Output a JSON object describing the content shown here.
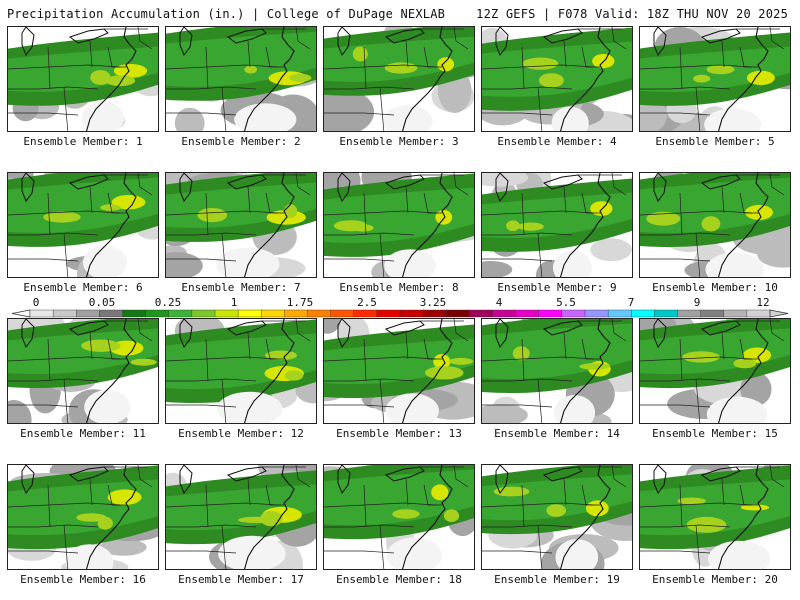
{
  "header": {
    "left": "Precipitation Accumulation (in.) | College of DuPage NEXLAB",
    "right": "12Z GEFS | F078 Valid: 18Z THU NOV 20 2025"
  },
  "panels": [
    {
      "label": "Ensemble Member: 1"
    },
    {
      "label": "Ensemble Member: 2"
    },
    {
      "label": "Ensemble Member: 3"
    },
    {
      "label": "Ensemble Member: 4"
    },
    {
      "label": "Ensemble Member: 5"
    },
    {
      "label": "Ensemble Member: 6"
    },
    {
      "label": "Ensemble Member: 7"
    },
    {
      "label": "Ensemble Member: 8"
    },
    {
      "label": "Ensemble Member: 9"
    },
    {
      "label": "Ensemble Member: 10"
    },
    {
      "label": "Ensemble Member: 11"
    },
    {
      "label": "Ensemble Member: 12"
    },
    {
      "label": "Ensemble Member: 13"
    },
    {
      "label": "Ensemble Member: 14"
    },
    {
      "label": "Ensemble Member: 15"
    },
    {
      "label": "Ensemble Member: 16"
    },
    {
      "label": "Ensemble Member: 17"
    },
    {
      "label": "Ensemble Member: 18"
    },
    {
      "label": "Ensemble Member: 19"
    },
    {
      "label": "Ensemble Member: 20"
    }
  ],
  "colorbar": {
    "labels": [
      "0",
      "0.05",
      "0.25",
      "1",
      "1.75",
      "2.5",
      "3.25",
      "4",
      "5.5",
      "7",
      "9",
      "12"
    ],
    "colors": [
      "#e6e6e6",
      "#c8c8c8",
      "#a0a0a0",
      "#787878",
      "#147814",
      "#1e961e",
      "#3cb43c",
      "#7cc828",
      "#c8e600",
      "#ffff00",
      "#ffd700",
      "#ffaa00",
      "#ff7f00",
      "#ff5500",
      "#ff2a00",
      "#e60000",
      "#c80000",
      "#a00000",
      "#780000",
      "#a0005a",
      "#c80096",
      "#e600c8",
      "#ff00ff",
      "#c864ff",
      "#9696ff",
      "#64c8ff",
      "#00ffff",
      "#00c8c8",
      "#a0a0a0",
      "#808080",
      "#b4b4b4",
      "#d2d2d2"
    ]
  }
}
